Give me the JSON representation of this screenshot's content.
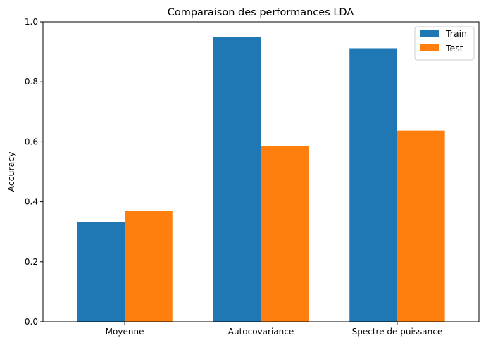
{
  "chart_data": {
    "type": "bar",
    "title": "Comparaison des performances LDA",
    "xlabel": "",
    "ylabel": "Accuracy",
    "categories": [
      "Moyenne",
      "Autocovariance",
      "Spectre de puissance"
    ],
    "series": [
      {
        "name": "Train",
        "color": "#1f77b4",
        "values": [
          0.333,
          0.95,
          0.912
        ]
      },
      {
        "name": "Test",
        "color": "#ff7f0e",
        "values": [
          0.37,
          0.585,
          0.637
        ]
      }
    ],
    "ylim": [
      0,
      1.0
    ],
    "yticks": [
      0.0,
      0.2,
      0.4,
      0.6,
      0.8,
      1.0
    ],
    "ytick_labels": [
      "0.0",
      "0.2",
      "0.4",
      "0.6",
      "0.8",
      "1.0"
    ],
    "grid": false,
    "legend_position": "top-right"
  }
}
